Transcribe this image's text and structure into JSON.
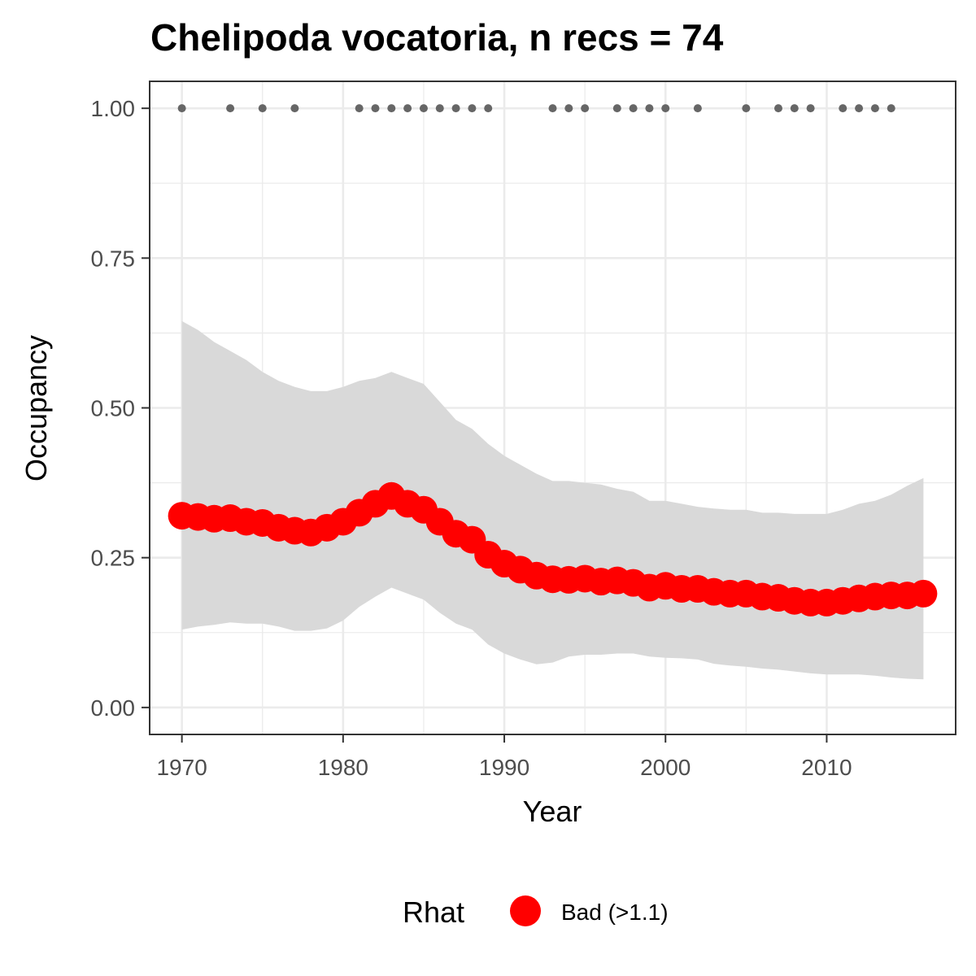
{
  "chart_data": {
    "type": "line",
    "title": "Chelipoda vocatoria, n recs = 74",
    "xlabel": "Year",
    "ylabel": "Occupancy",
    "xlim": [
      1968,
      2018
    ],
    "ylim": [
      -0.045,
      1.045
    ],
    "x_ticks": [
      1970,
      1980,
      1990,
      2000,
      2010
    ],
    "y_ticks": [
      0.0,
      0.25,
      0.5,
      0.75,
      1.0
    ],
    "y_tick_labels": [
      "0.00",
      "0.25",
      "0.50",
      "0.75",
      "1.00"
    ],
    "grid": true,
    "legend": {
      "title": "Rhat",
      "position": "bottom",
      "entries": [
        {
          "label": "Bad (>1.1)",
          "color": "#ff0000"
        }
      ]
    },
    "colors": {
      "line": "#ff0000",
      "ribbon": "#d9d9d9",
      "records": "#666666",
      "grid": "#ebebeb",
      "panel_border": "#333333"
    },
    "series": [
      {
        "name": "Bad (>1.1)",
        "x": [
          1970,
          1971,
          1972,
          1973,
          1974,
          1975,
          1976,
          1977,
          1978,
          1979,
          1980,
          1981,
          1982,
          1983,
          1984,
          1985,
          1986,
          1987,
          1988,
          1989,
          1990,
          1991,
          1992,
          1993,
          1994,
          1995,
          1996,
          1997,
          1998,
          1999,
          2000,
          2001,
          2002,
          2003,
          2004,
          2005,
          2006,
          2007,
          2008,
          2009,
          2010,
          2011,
          2012,
          2013,
          2014,
          2015,
          2016
        ],
        "y": [
          0.32,
          0.318,
          0.315,
          0.316,
          0.31,
          0.308,
          0.3,
          0.295,
          0.292,
          0.3,
          0.31,
          0.325,
          0.34,
          0.353,
          0.34,
          0.33,
          0.31,
          0.29,
          0.28,
          0.255,
          0.24,
          0.23,
          0.22,
          0.214,
          0.213,
          0.215,
          0.21,
          0.212,
          0.208,
          0.2,
          0.203,
          0.198,
          0.198,
          0.193,
          0.19,
          0.19,
          0.185,
          0.183,
          0.178,
          0.175,
          0.175,
          0.178,
          0.182,
          0.185,
          0.187,
          0.187,
          0.19
        ]
      }
    ],
    "ribbon": {
      "x": [
        1970,
        1971,
        1972,
        1973,
        1974,
        1975,
        1976,
        1977,
        1978,
        1979,
        1980,
        1981,
        1982,
        1983,
        1984,
        1985,
        1986,
        1987,
        1988,
        1989,
        1990,
        1991,
        1992,
        1993,
        1994,
        1995,
        1996,
        1997,
        1998,
        1999,
        2000,
        2001,
        2002,
        2003,
        2004,
        2005,
        2006,
        2007,
        2008,
        2009,
        2010,
        2011,
        2012,
        2013,
        2014,
        2015,
        2016
      ],
      "lower": [
        0.13,
        0.135,
        0.138,
        0.142,
        0.14,
        0.14,
        0.135,
        0.128,
        0.128,
        0.132,
        0.145,
        0.168,
        0.185,
        0.2,
        0.19,
        0.18,
        0.158,
        0.14,
        0.13,
        0.105,
        0.09,
        0.08,
        0.072,
        0.075,
        0.085,
        0.088,
        0.088,
        0.09,
        0.09,
        0.085,
        0.083,
        0.082,
        0.08,
        0.073,
        0.07,
        0.068,
        0.065,
        0.063,
        0.06,
        0.057,
        0.055,
        0.055,
        0.055,
        0.053,
        0.05,
        0.048,
        0.047
      ],
      "upper": [
        0.645,
        0.63,
        0.61,
        0.595,
        0.58,
        0.56,
        0.545,
        0.535,
        0.528,
        0.528,
        0.535,
        0.545,
        0.55,
        0.56,
        0.55,
        0.54,
        0.51,
        0.48,
        0.465,
        0.44,
        0.42,
        0.405,
        0.39,
        0.378,
        0.378,
        0.375,
        0.372,
        0.365,
        0.36,
        0.345,
        0.345,
        0.34,
        0.335,
        0.332,
        0.33,
        0.33,
        0.325,
        0.325,
        0.323,
        0.323,
        0.323,
        0.33,
        0.34,
        0.345,
        0.355,
        0.37,
        0.383
      ]
    },
    "records": {
      "y": 1.0,
      "x": [
        1970,
        1973,
        1975,
        1977,
        1981,
        1982,
        1983,
        1984,
        1985,
        1986,
        1987,
        1988,
        1989,
        1993,
        1994,
        1995,
        1997,
        1998,
        1999,
        2000,
        2002,
        2005,
        2007,
        2008,
        2009,
        2011,
        2012,
        2013,
        2014
      ]
    }
  }
}
